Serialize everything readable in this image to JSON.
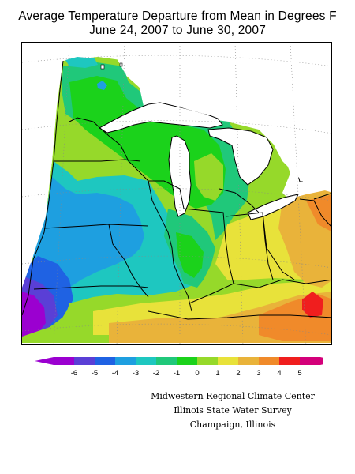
{
  "title_line1": "Average Temperature Departure from Mean in Degrees F",
  "title_line2": "June 24, 2007 to June 30, 2007",
  "legend": {
    "labels": [
      "-6",
      "-5",
      "-4",
      "-3",
      "-2",
      "-1",
      "0",
      "1",
      "2",
      "3",
      "4",
      "5"
    ],
    "colors": [
      "#9b00d0",
      "#5a3fd6",
      "#1f62e3",
      "#1e9fe0",
      "#1ec7c0",
      "#20c87a",
      "#1bd21b",
      "#96d92a",
      "#e8e23a",
      "#e9b33a",
      "#f08a2a",
      "#f01e1e",
      "#d4007a"
    ]
  },
  "region_colors": {
    "minus6": "#9b00d0",
    "minus5": "#5a3fd6",
    "minus4": "#1f62e3",
    "minus3": "#1e9fe0",
    "minus2": "#1ec7c0",
    "minus1": "#20c87a",
    "zero": "#1bd21b",
    "plus1": "#96d92a",
    "plus2": "#e8e23a",
    "plus3": "#e9b33a",
    "plus4": "#f08a2a",
    "plus5": "#f01e1e"
  },
  "credits": {
    "line1": "Midwestern Regional Climate Center",
    "line2": "Illinois State Water Survey",
    "line3": "Champaign, Illinois"
  }
}
